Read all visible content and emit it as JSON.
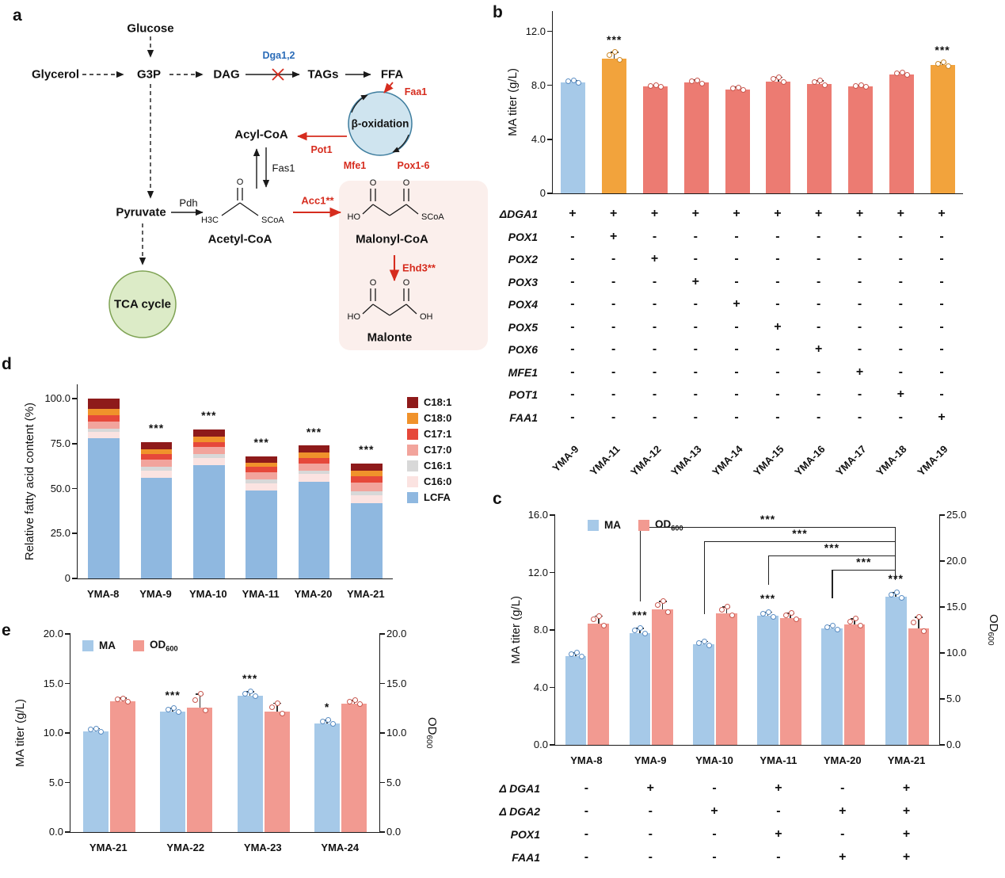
{
  "panels": {
    "a": "a",
    "b": "b",
    "c": "c",
    "d": "d",
    "e": "e"
  },
  "diagram": {
    "glucose": "Glucose",
    "glycerol": "Glycerol",
    "g3p": "G3P",
    "dag": "DAG",
    "tags": "TAGs",
    "ffa": "FFA",
    "dga12": "Dga1,2",
    "faa1": "Faa1",
    "beta_oxidation": "β-oxidation",
    "pot1": "Pot1",
    "mfe1": "Mfe1",
    "pox": "Pox1-6",
    "acyl_coa": "Acyl-CoA",
    "fas1": "Fas1",
    "pyruvate": "Pyruvate",
    "pdh": "Pdh",
    "acetyl_coa": "Acetyl-CoA",
    "acc1": "Acc1**",
    "malonyl_coa": "Malonyl-CoA",
    "ehd3": "Ehd3**",
    "malonate": "Malonte",
    "tca": "TCA cycle",
    "chem": {
      "o": "O",
      "ho": "HO",
      "oh": "OH",
      "h3c": "H3C",
      "scoa": "SCoA"
    }
  },
  "chart_data": [
    {
      "id": "b",
      "type": "bar",
      "rotate_xlabels": true,
      "ylabel": "MA titer (g/L)",
      "ylim": [
        0,
        13.5
      ],
      "yticks": [
        {
          "v": 0,
          "label": "0"
        },
        {
          "v": 4,
          "label": "4.0"
        },
        {
          "v": 8,
          "label": "8.0"
        },
        {
          "v": 12,
          "label": "12.0"
        }
      ],
      "categories": [
        "YMA-9",
        "YMA-11",
        "YMA-12",
        "YMA-13",
        "YMA-14",
        "YMA-15",
        "YMA-16",
        "YMA-17",
        "YMA-18",
        "YMA-19"
      ],
      "values": [
        8.2,
        10.0,
        7.9,
        8.2,
        7.7,
        8.3,
        8.1,
        7.9,
        8.8,
        9.5
      ],
      "errors": [
        0.15,
        0.45,
        0.12,
        0.18,
        0.15,
        0.3,
        0.25,
        0.12,
        0.12,
        0.2
      ],
      "bar_colors": [
        "#A6C9E8",
        "#F2A33C",
        "#EC7B72",
        "#EC7B72",
        "#EC7B72",
        "#EC7B72",
        "#EC7B72",
        "#EC7B72",
        "#EC7B72",
        "#F2A33C"
      ],
      "bar_dots": [
        "#5B8EC4",
        "#C98728",
        "#C9574E",
        "#C9574E",
        "#C9574E",
        "#C9574E",
        "#C9574E",
        "#C9574E",
        "#C9574E",
        "#C98728"
      ],
      "sig": [
        "",
        "***",
        "",
        "",
        "",
        "",
        "",
        "",
        "",
        "***"
      ],
      "genotype": {
        "genes": [
          "ΔDGA1",
          "POX1",
          "POX2",
          "POX3",
          "POX4",
          "POX5",
          "POX6",
          "MFE1",
          "POT1",
          "FAA1"
        ],
        "matrix": [
          [
            "+",
            "+",
            "+",
            "+",
            "+",
            "+",
            "+",
            "+",
            "+",
            "+"
          ],
          [
            "-",
            "+",
            "-",
            "-",
            "-",
            "-",
            "-",
            "-",
            "-",
            "-"
          ],
          [
            "-",
            "-",
            "+",
            "-",
            "-",
            "-",
            "-",
            "-",
            "-",
            "-"
          ],
          [
            "-",
            "-",
            "-",
            "+",
            "-",
            "-",
            "-",
            "-",
            "-",
            "-"
          ],
          [
            "-",
            "-",
            "-",
            "-",
            "+",
            "-",
            "-",
            "-",
            "-",
            "-"
          ],
          [
            "-",
            "-",
            "-",
            "-",
            "-",
            "+",
            "-",
            "-",
            "-",
            "-"
          ],
          [
            "-",
            "-",
            "-",
            "-",
            "-",
            "-",
            "+",
            "-",
            "-",
            "-"
          ],
          [
            "-",
            "-",
            "-",
            "-",
            "-",
            "-",
            "-",
            "+",
            "-",
            "-"
          ],
          [
            "-",
            "-",
            "-",
            "-",
            "-",
            "-",
            "-",
            "-",
            "+",
            "-"
          ],
          [
            "-",
            "-",
            "-",
            "-",
            "-",
            "-",
            "-",
            "-",
            "-",
            "+"
          ]
        ]
      }
    },
    {
      "id": "c",
      "type": "grouped-bar",
      "ylabel_left": "MA titer (g/L)",
      "ylabel_right_main": "OD",
      "ylabel_right_sub": "600",
      "ylim_left": [
        0,
        16
      ],
      "ylim_right": [
        0,
        25
      ],
      "yticks_left": [
        {
          "v": 0,
          "label": "0.0"
        },
        {
          "v": 4,
          "label": "4.0"
        },
        {
          "v": 8,
          "label": "8.0"
        },
        {
          "v": 12,
          "label": "12.0"
        },
        {
          "v": 16,
          "label": "16.0"
        }
      ],
      "yticks_right": [
        {
          "v": 0,
          "label": "0.0"
        },
        {
          "v": 5,
          "label": "5.0"
        },
        {
          "v": 10,
          "label": "10.0"
        },
        {
          "v": 15,
          "label": "15.0"
        },
        {
          "v": 20,
          "label": "20.0"
        },
        {
          "v": 25,
          "label": "25.0"
        }
      ],
      "categories": [
        "YMA-8",
        "YMA-9",
        "YMA-10",
        "YMA-11",
        "YMA-20",
        "YMA-21"
      ],
      "series": [
        {
          "name": "MA",
          "axis": "left",
          "color": "#A6C9E8",
          "dot": "#5B8EC4",
          "values": [
            6.2,
            7.8,
            7.0,
            9.0,
            8.1,
            10.3
          ],
          "errors": [
            0.2,
            0.3,
            0.2,
            0.25,
            0.2,
            0.3
          ],
          "sig": [
            "",
            "***",
            "",
            "***",
            "",
            "***"
          ]
        },
        {
          "name": "OD",
          "sub": "600",
          "axis": "right",
          "color": "#F29A91",
          "dot": "#C9574E",
          "values": [
            13.2,
            14.7,
            14.3,
            13.8,
            13.1,
            12.7
          ],
          "errors": [
            0.8,
            0.9,
            0.7,
            0.5,
            0.6,
            1.2
          ],
          "sig": [
            "",
            "",
            "",
            "",
            "",
            ""
          ]
        }
      ],
      "brackets": [
        {
          "from": 1,
          "to": 5,
          "y": 15.2,
          "label": "***"
        },
        {
          "from": 2,
          "to": 5,
          "y": 14.2,
          "label": "***"
        },
        {
          "from": 3,
          "to": 5,
          "y": 13.2,
          "label": "***"
        },
        {
          "from": 4,
          "to": 5,
          "y": 12.2,
          "label": "***"
        }
      ],
      "genotype": {
        "genes": [
          "Δ DGA1",
          "Δ DGA2",
          "POX1",
          "FAA1"
        ],
        "matrix": [
          [
            "-",
            "+",
            "-",
            "+",
            "-",
            "+"
          ],
          [
            "-",
            "-",
            "+",
            "-",
            "+",
            "+"
          ],
          [
            "-",
            "-",
            "-",
            "+",
            "-",
            "+"
          ],
          [
            "-",
            "-",
            "-",
            "-",
            "+",
            "+"
          ]
        ]
      }
    },
    {
      "id": "d",
      "type": "stacked-bar",
      "ylabel": "Relative fatty acid content (%)",
      "ylim": [
        0,
        108
      ],
      "yticks": [
        {
          "v": 0,
          "label": "0"
        },
        {
          "v": 25,
          "label": "25.0"
        },
        {
          "v": 50,
          "label": "50.0"
        },
        {
          "v": 75,
          "label": "75.0"
        },
        {
          "v": 100,
          "label": "100.0"
        }
      ],
      "categories": [
        "YMA-8",
        "YMA-9",
        "YMA-10",
        "YMA-11",
        "YMA-20",
        "YMA-21"
      ],
      "series": [
        {
          "name": "LCFA",
          "color": "#8FB8E0",
          "values": [
            78,
            56,
            63,
            49,
            54,
            42
          ]
        },
        {
          "name": "C16:0",
          "color": "#FBE3E1",
          "values": [
            3.5,
            4,
            4,
            4,
            4,
            4.5
          ]
        },
        {
          "name": "C16:1",
          "color": "#D8D8D8",
          "values": [
            2,
            2,
            2,
            2,
            2,
            2
          ]
        },
        {
          "name": "C17:0",
          "color": "#F2A49C",
          "values": [
            4,
            4,
            4,
            4,
            4,
            5
          ]
        },
        {
          "name": "C17:1",
          "color": "#E6483A",
          "values": [
            3.5,
            3,
            3,
            3,
            3,
            3.5
          ]
        },
        {
          "name": "C18:0",
          "color": "#F0922B",
          "values": [
            3.5,
            3,
            3,
            2.5,
            3,
            3
          ]
        },
        {
          "name": "C18:1",
          "color": "#8E1A1A",
          "values": [
            5.5,
            4,
            4,
            3.5,
            4,
            4
          ]
        }
      ],
      "sig": [
        "",
        "***",
        "***",
        "***",
        "***",
        "***"
      ]
    },
    {
      "id": "e",
      "type": "grouped-bar",
      "ylabel_left": "MA titer (g/L)",
      "ylabel_right_main": "OD",
      "ylabel_right_sub": "600",
      "ylim_left": [
        0,
        20
      ],
      "ylim_right": [
        0,
        20
      ],
      "yticks_left": [
        {
          "v": 0,
          "label": "0.0"
        },
        {
          "v": 5,
          "label": "5.0"
        },
        {
          "v": 10,
          "label": "10.0"
        },
        {
          "v": 15,
          "label": "15.0"
        },
        {
          "v": 20,
          "label": "20.0"
        }
      ],
      "yticks_right": [
        {
          "v": 0,
          "label": "0.0"
        },
        {
          "v": 5,
          "label": "5.0"
        },
        {
          "v": 10,
          "label": "10.0"
        },
        {
          "v": 15,
          "label": "15.0"
        },
        {
          "v": 20,
          "label": "20.0"
        }
      ],
      "categories": [
        "YMA-21",
        "YMA-22",
        "YMA-23",
        "YMA-24"
      ],
      "series": [
        {
          "name": "MA",
          "axis": "left",
          "color": "#A6C9E8",
          "dot": "#5B8EC4",
          "values": [
            10.2,
            12.2,
            13.8,
            11.0
          ],
          "errors": [
            0.25,
            0.3,
            0.35,
            0.3
          ],
          "sig": [
            "",
            "***",
            "***",
            "*"
          ]
        },
        {
          "name": "OD",
          "sub": "600",
          "axis": "right",
          "color": "#F29A91",
          "dot": "#C9574E",
          "values": [
            13.2,
            12.6,
            12.2,
            13.0
          ],
          "errors": [
            0.3,
            1.3,
            0.8,
            0.3
          ],
          "sig": [
            "",
            "",
            "",
            ""
          ]
        }
      ]
    }
  ]
}
